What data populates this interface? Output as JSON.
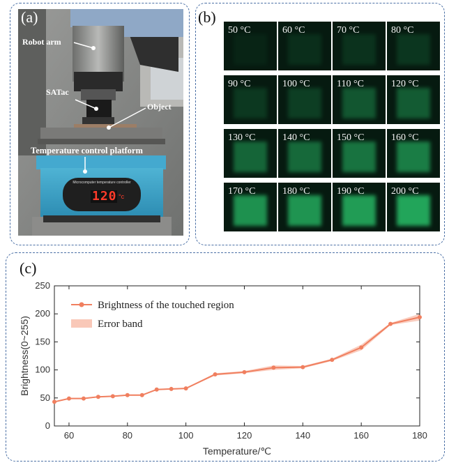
{
  "panel_a": {
    "label": "(a)",
    "labels": {
      "robot_arm": "Robot arm",
      "satac": "SATac",
      "object": "Object",
      "platform": "Temperature control platform",
      "controller_title": "Microcomputer temperature controller",
      "display": "120",
      "display_unit": "°c"
    }
  },
  "panel_b": {
    "label": "(b)",
    "tiles": [
      {
        "label": "50 °C",
        "brightness": 0.05
      },
      {
        "label": "60 °C",
        "brightness": 0.1
      },
      {
        "label": "70 °C",
        "brightness": 0.12
      },
      {
        "label": "80 °C",
        "brightness": 0.14
      },
      {
        "label": "90 °C",
        "brightness": 0.15
      },
      {
        "label": "100 °C",
        "brightness": 0.18
      },
      {
        "label": "110 °C",
        "brightness": 0.3
      },
      {
        "label": "120 °C",
        "brightness": 0.33
      },
      {
        "label": "130 °C",
        "brightness": 0.38
      },
      {
        "label": "140 °C",
        "brightness": 0.4
      },
      {
        "label": "150 °C",
        "brightness": 0.45
      },
      {
        "label": "160 °C",
        "brightness": 0.5
      },
      {
        "label": "170 °C",
        "brightness": 0.6
      },
      {
        "label": "180 °C",
        "brightness": 0.62
      },
      {
        "label": "190 °C",
        "brightness": 0.66
      },
      {
        "label": "200 °C",
        "brightness": 0.7
      }
    ]
  },
  "panel_c": {
    "label": "(c)"
  },
  "chart_data": {
    "type": "line",
    "title": "",
    "xlabel": "Temperature/℃",
    "ylabel": "Brightness(0~255)",
    "xlim": [
      55,
      180
    ],
    "ylim": [
      0,
      250
    ],
    "xticks": [
      "60",
      "80",
      "100",
      "120",
      "140",
      "160",
      "180"
    ],
    "yticks": [
      "0",
      "50",
      "100",
      "150",
      "200",
      "250"
    ],
    "grid": false,
    "legend_position": "top-left",
    "colors": {
      "line": "#f07f5f",
      "band": "#f9c8b8"
    },
    "series": [
      {
        "name": "Brightness  of the touched region",
        "x": [
          55,
          60,
          65,
          70,
          75,
          80,
          85,
          90,
          95,
          100,
          110,
          120,
          130,
          140,
          150,
          160,
          170,
          180
        ],
        "y": [
          43,
          49,
          49,
          52,
          53,
          55,
          55,
          65,
          66,
          67,
          92,
          96,
          104,
          105,
          118,
          140,
          182,
          194
        ],
        "err": [
          1,
          1,
          1,
          1,
          1,
          1,
          1,
          1,
          1,
          1,
          2,
          2,
          4,
          2,
          2,
          5,
          2,
          6
        ]
      }
    ],
    "band_name": "Error band"
  }
}
